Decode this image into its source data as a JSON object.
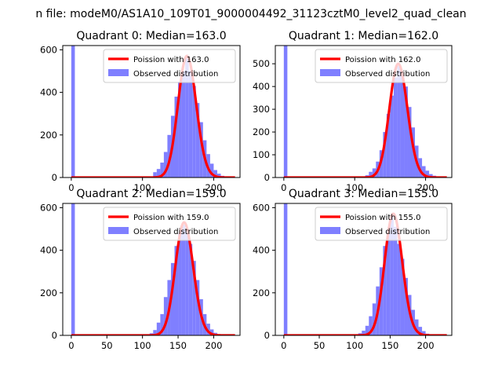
{
  "figure_title": "n file: modeM0/AS1A10_109T01_9000004492_31123cztM0_level2_quad_clean",
  "colors": {
    "fit_line": "#ff0000",
    "histogram": "#7f7fff",
    "axis": "#000000",
    "legend_border": "#cccccc"
  },
  "chart_data": [
    {
      "type": "bar",
      "title": "Quadrant 0: Median=163.0",
      "median": 163,
      "x_range": [
        -12,
        237
      ],
      "ylim": [
        0,
        620
      ],
      "x_ticks": [
        0,
        100,
        200
      ],
      "y_ticks": [
        0,
        200,
        400,
        600
      ],
      "legend": {
        "position": "top-right",
        "fit_label": "Poission with 163.0",
        "hist_label": "Observed distribution"
      },
      "bin_width": 5,
      "bins": [
        {
          "x": 0,
          "y": 620
        },
        {
          "x": 115,
          "y": 25
        },
        {
          "x": 120,
          "y": 40
        },
        {
          "x": 125,
          "y": 70
        },
        {
          "x": 130,
          "y": 120
        },
        {
          "x": 135,
          "y": 200
        },
        {
          "x": 140,
          "y": 290
        },
        {
          "x": 145,
          "y": 380
        },
        {
          "x": 150,
          "y": 450
        },
        {
          "x": 155,
          "y": 500
        },
        {
          "x": 160,
          "y": 560
        },
        {
          "x": 165,
          "y": 500
        },
        {
          "x": 170,
          "y": 430
        },
        {
          "x": 175,
          "y": 350
        },
        {
          "x": 180,
          "y": 260
        },
        {
          "x": 185,
          "y": 175
        },
        {
          "x": 190,
          "y": 110
        },
        {
          "x": 195,
          "y": 65
        },
        {
          "x": 200,
          "y": 35
        },
        {
          "x": 205,
          "y": 18
        },
        {
          "x": 210,
          "y": 8
        }
      ]
    },
    {
      "type": "bar",
      "title": "Quadrant 1: Median=162.0",
      "median": 162,
      "x_range": [
        -12,
        237
      ],
      "ylim": [
        0,
        580
      ],
      "x_ticks": [
        0,
        100,
        200
      ],
      "y_ticks": [
        0,
        100,
        200,
        300,
        400,
        500
      ],
      "legend": {
        "position": "top-right",
        "fit_label": "Poission with 162.0",
        "hist_label": "Observed distribution"
      },
      "bin_width": 5,
      "bins": [
        {
          "x": 0,
          "y": 580
        },
        {
          "x": 115,
          "y": 10
        },
        {
          "x": 120,
          "y": 25
        },
        {
          "x": 125,
          "y": 40
        },
        {
          "x": 130,
          "y": 70
        },
        {
          "x": 135,
          "y": 120
        },
        {
          "x": 140,
          "y": 200
        },
        {
          "x": 145,
          "y": 280
        },
        {
          "x": 150,
          "y": 360
        },
        {
          "x": 155,
          "y": 440
        },
        {
          "x": 160,
          "y": 490
        },
        {
          "x": 165,
          "y": 450
        },
        {
          "x": 170,
          "y": 400
        },
        {
          "x": 175,
          "y": 310
        },
        {
          "x": 180,
          "y": 220
        },
        {
          "x": 185,
          "y": 140
        },
        {
          "x": 190,
          "y": 85
        },
        {
          "x": 195,
          "y": 50
        },
        {
          "x": 200,
          "y": 30
        },
        {
          "x": 205,
          "y": 15
        },
        {
          "x": 210,
          "y": 8
        }
      ]
    },
    {
      "type": "bar",
      "title": "Quadrant 2: Median=159.0",
      "median": 159,
      "x_range": [
        -12,
        237
      ],
      "ylim": [
        0,
        620
      ],
      "x_ticks": [
        0,
        50,
        100,
        150,
        200
      ],
      "y_ticks": [
        0,
        200,
        400,
        600
      ],
      "legend": {
        "position": "top-right",
        "fit_label": "Poission with 159.0",
        "hist_label": "Observed distribution"
      },
      "bin_width": 5,
      "bins": [
        {
          "x": 0,
          "y": 620
        },
        {
          "x": 110,
          "y": 10
        },
        {
          "x": 115,
          "y": 25
        },
        {
          "x": 120,
          "y": 60
        },
        {
          "x": 125,
          "y": 100
        },
        {
          "x": 130,
          "y": 180
        },
        {
          "x": 135,
          "y": 260
        },
        {
          "x": 140,
          "y": 340
        },
        {
          "x": 145,
          "y": 420
        },
        {
          "x": 150,
          "y": 480
        },
        {
          "x": 155,
          "y": 520
        },
        {
          "x": 160,
          "y": 490
        },
        {
          "x": 165,
          "y": 430
        },
        {
          "x": 170,
          "y": 350
        },
        {
          "x": 175,
          "y": 260
        },
        {
          "x": 180,
          "y": 170
        },
        {
          "x": 185,
          "y": 100
        },
        {
          "x": 190,
          "y": 55
        },
        {
          "x": 195,
          "y": 28
        },
        {
          "x": 200,
          "y": 12
        }
      ]
    },
    {
      "type": "bar",
      "title": "Quadrant 3: Median=155.0",
      "median": 155,
      "x_range": [
        -12,
        237
      ],
      "ylim": [
        0,
        620
      ],
      "x_ticks": [
        0,
        50,
        100,
        150,
        200
      ],
      "y_ticks": [
        0,
        200,
        400,
        600
      ],
      "legend": {
        "position": "top-right",
        "fit_label": "Poission with 155.0",
        "hist_label": "Observed distribution"
      },
      "bin_width": 5,
      "bins": [
        {
          "x": 0,
          "y": 620
        },
        {
          "x": 105,
          "y": 10
        },
        {
          "x": 110,
          "y": 22
        },
        {
          "x": 115,
          "y": 45
        },
        {
          "x": 120,
          "y": 90
        },
        {
          "x": 125,
          "y": 150
        },
        {
          "x": 130,
          "y": 230
        },
        {
          "x": 135,
          "y": 320
        },
        {
          "x": 140,
          "y": 420
        },
        {
          "x": 145,
          "y": 480
        },
        {
          "x": 150,
          "y": 560
        },
        {
          "x": 155,
          "y": 510
        },
        {
          "x": 160,
          "y": 430
        },
        {
          "x": 165,
          "y": 360
        },
        {
          "x": 170,
          "y": 270
        },
        {
          "x": 175,
          "y": 190
        },
        {
          "x": 180,
          "y": 120
        },
        {
          "x": 185,
          "y": 75
        },
        {
          "x": 190,
          "y": 40
        },
        {
          "x": 195,
          "y": 20
        },
        {
          "x": 200,
          "y": 8
        }
      ]
    }
  ]
}
